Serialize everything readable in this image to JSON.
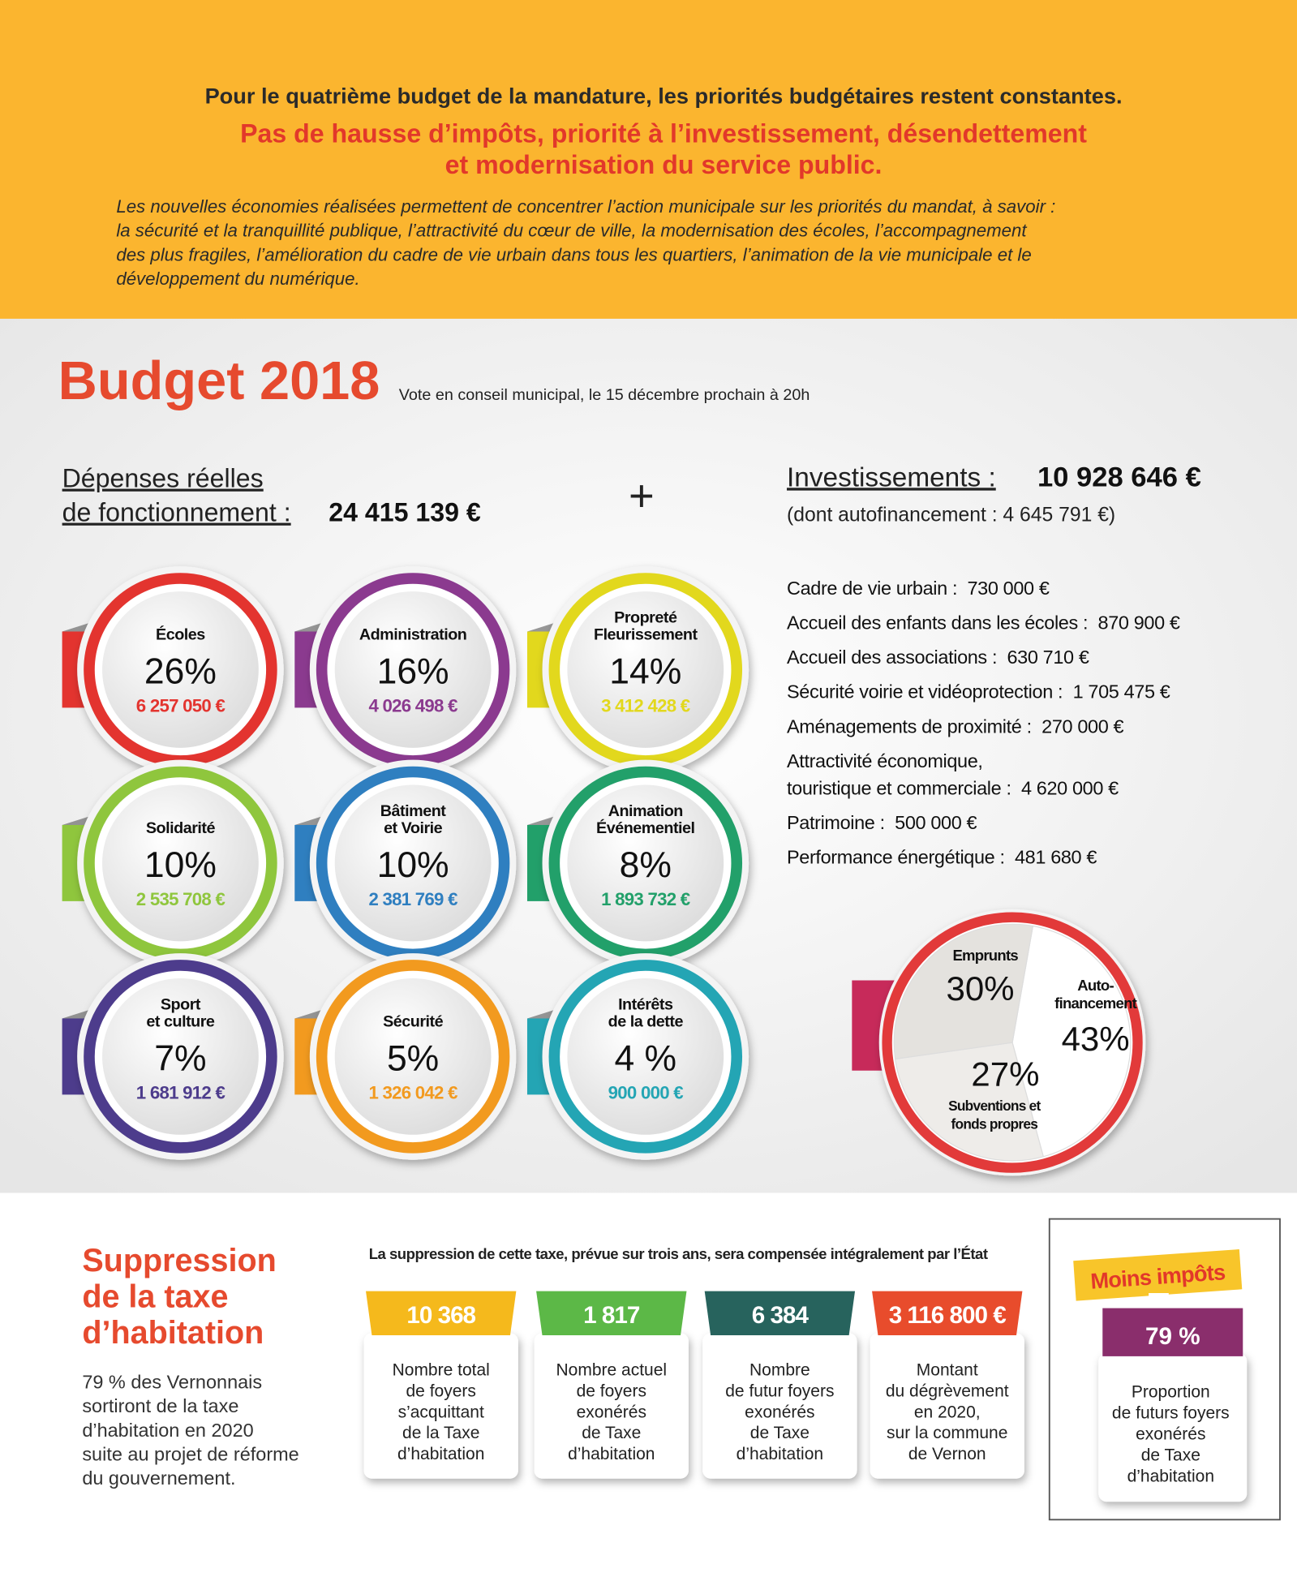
{
  "header": {
    "line1": "Pour le quatrième budget de la mandature, les priorités budgétaires restent constantes.",
    "line2": "Pas de hausse d’impôts, priorité à l’investissement, désendettement",
    "line3": "et modernisation du service public.",
    "paragraph": [
      "Les nouvelles économies réalisées permettent de concentrer l’action municipale sur les priorités du mandat, à savoir :",
      "la sécurité et la tranquillité publique, l’attractivité du cœur de ville, la modernisation des écoles, l’accompagnement",
      "des plus fragiles, l’amélioration du cadre de vie urbain dans tous les quartiers, l’animation de la vie municipale et le",
      "développement du numérique."
    ]
  },
  "budget": {
    "title": "Budget 2018",
    "subtitle": "Vote en conseil municipal, le 15 décembre prochain à 20h",
    "depenses": {
      "label": [
        "Dépenses réelles",
        "de fonctionnement :"
      ],
      "amount": "24 415 139 €"
    },
    "plus": "+",
    "investissements": {
      "label": "Investissements :",
      "amount": "10 928 646 €",
      "note": "(dont autofinancement : 4 645 791 €)",
      "items": [
        {
          "label": [
            "Cadre de vie urbain :"
          ],
          "amount": "730 000 €"
        },
        {
          "label": [
            "Accueil des enfants dans les écoles :"
          ],
          "amount": "870 900 €"
        },
        {
          "label": [
            "Accueil des associations :"
          ],
          "amount": "630 710 €"
        },
        {
          "label": [
            "Sécurité voirie et vidéoprotection :"
          ],
          "amount": "1 705 475 €"
        },
        {
          "label": [
            "Aménagements de proximité :"
          ],
          "amount": "270 000 €"
        },
        {
          "label": [
            "Attractivité économique,",
            "touristique et commerciale :"
          ],
          "amount": "4 620 000 €"
        },
        {
          "label": [
            "Patrimoine :"
          ],
          "amount": "500 000 €"
        },
        {
          "label": [
            "Performance énergétique :"
          ],
          "amount": "481 680 €"
        }
      ]
    },
    "categories": [
      {
        "name": [
          "Écoles"
        ],
        "percent": "26%",
        "amount": "6 257 050 €",
        "color": "#e3342f"
      },
      {
        "name": [
          "Administration"
        ],
        "percent": "16%",
        "amount": "4 026 498 €",
        "color": "#8b3a8f"
      },
      {
        "name": [
          "Propreté",
          "Fleurissement"
        ],
        "percent": "14%",
        "amount": "3 412 428 €",
        "color": "#e2d81d"
      },
      {
        "name": [
          "Solidarité"
        ],
        "percent": "10%",
        "amount": "2 535 708 €",
        "color": "#8fc63d"
      },
      {
        "name": [
          "Bâtiment",
          "et Voirie"
        ],
        "percent": "10%",
        "amount": "2 381 769 €",
        "color": "#2f7fc0"
      },
      {
        "name": [
          "Animation",
          "Événementiel"
        ],
        "percent": "8%",
        "amount": "1 893 732 €",
        "color": "#22a06a"
      },
      {
        "name": [
          "Sport",
          "et culture"
        ],
        "percent": "7%",
        "amount": "1 681 912 €",
        "color": "#4d3c8c"
      },
      {
        "name": [
          "Sécurité"
        ],
        "percent": "5%",
        "amount": "1 326 042 €",
        "color": "#f29a1f"
      },
      {
        "name": [
          "Intérêts",
          "de la dette"
        ],
        "percent": "4 %",
        "amount": "900 000 €",
        "color": "#24a5b4"
      }
    ],
    "financing": {
      "slices": [
        {
          "name": [
            "Emprunts"
          ],
          "value": 30,
          "value_label": "30%",
          "color": "#e4e2de"
        },
        {
          "name": [
            "Auto-",
            "financement"
          ],
          "value": 43,
          "value_label": "43%",
          "color": "#ffffff"
        },
        {
          "name": [
            "Subventions et",
            "fonds propres"
          ],
          "value": 27,
          "value_label": "27%",
          "color": "#eeece9"
        }
      ]
    }
  },
  "taxe": {
    "title": [
      "Suppression",
      "de la taxe",
      "d’habitation"
    ],
    "text": [
      "79 % des Vernonnais",
      "sortiront de la taxe",
      "d’habitation en 2020",
      "suite au projet de réforme",
      "du gouvernement."
    ],
    "banner": "La suppression de cette taxe, prévue sur trois ans, sera compensée intégralement par l’État",
    "stats": [
      {
        "value": "10 368",
        "text": [
          "Nombre total",
          "de foyers",
          "s’acquittant",
          "de la Taxe",
          "d’habitation"
        ],
        "color": "#f5b91c"
      },
      {
        "value": "1 817",
        "text": [
          "Nombre actuel",
          "de foyers",
          "exonérés",
          "de Taxe",
          "d’habitation"
        ],
        "color": "#5cb847"
      },
      {
        "value": "6 384",
        "text": [
          "Nombre",
          "de futur foyers",
          "exonérés",
          "de Taxe",
          "d’habitation"
        ],
        "color": "#27635d"
      },
      {
        "value": "3 116 800 €",
        "text": [
          "Montant",
          "du dégrèvement",
          "en 2020,",
          "sur la commune",
          "de Vernon"
        ],
        "color": "#e84c2c"
      }
    ],
    "moins": {
      "ribbon": "Moins impôts",
      "value": "79 %",
      "text": [
        "Proportion",
        "de futurs foyers",
        "exonérés",
        "de Taxe",
        "d’habitation"
      ]
    }
  }
}
